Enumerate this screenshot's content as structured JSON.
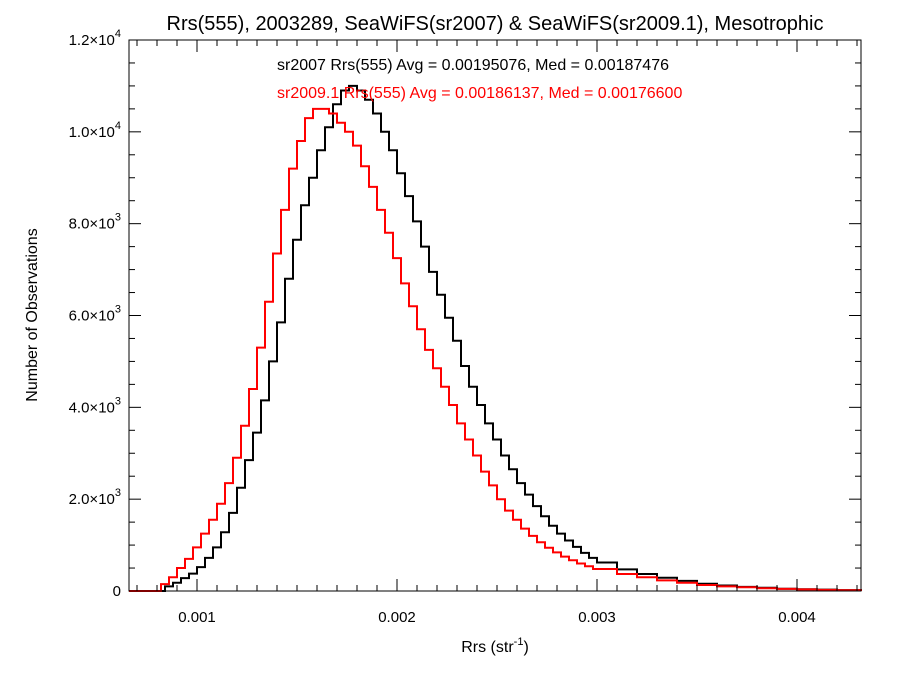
{
  "chart_data": {
    "type": "line",
    "title": "Rrs(555), 2003289, SeaWiFS(sr2007) & SeaWiFS(sr2009.1), Mesotrophic",
    "xlabel": "Rrs (str",
    "xlabel_sup": "-1",
    "xlabel_suffix": ")",
    "ylabel": "Number of Observations",
    "xlim": [
      0.00066,
      0.00432
    ],
    "ylim": [
      0,
      12000
    ],
    "x_ticks": [
      {
        "value": 0.001,
        "label": "0.001"
      },
      {
        "value": 0.002,
        "label": "0.002"
      },
      {
        "value": 0.003,
        "label": "0.003"
      },
      {
        "value": 0.004,
        "label": "0.004"
      }
    ],
    "y_ticks": [
      {
        "value": 0,
        "mant": "0",
        "exp": ""
      },
      {
        "value": 2000,
        "mant": "2.0×10",
        "exp": "3"
      },
      {
        "value": 4000,
        "mant": "4.0×10",
        "exp": "3"
      },
      {
        "value": 6000,
        "mant": "6.0×10",
        "exp": "3"
      },
      {
        "value": 8000,
        "mant": "8.0×10",
        "exp": "3"
      },
      {
        "value": 10000,
        "mant": "1.0×10",
        "exp": "4"
      },
      {
        "value": 12000,
        "mant": "1.2×10",
        "exp": "4"
      }
    ],
    "annotations": [
      {
        "text": "sr2007 Rrs(555) Avg = 0.00195076, Med = 0.00187476",
        "color": "#000000"
      },
      {
        "text": "sr2009.1 Rrs(555) Avg = 0.00186137, Med = 0.00176600",
        "color": "#ff0000"
      }
    ],
    "series": [
      {
        "color": "#000000",
        "step": true,
        "x": [
          0.00066,
          0.00082,
          0.00084,
          0.00088,
          0.00092,
          0.00096,
          0.001,
          0.00104,
          0.00108,
          0.00112,
          0.00116,
          0.0012,
          0.00124,
          0.00128,
          0.00132,
          0.00136,
          0.0014,
          0.00144,
          0.00148,
          0.00152,
          0.00156,
          0.0016,
          0.00164,
          0.00168,
          0.00172,
          0.00176,
          0.0018,
          0.00184,
          0.00188,
          0.00192,
          0.00196,
          0.002,
          0.00204,
          0.00208,
          0.00212,
          0.00216,
          0.0022,
          0.00224,
          0.00228,
          0.00232,
          0.00236,
          0.0024,
          0.00244,
          0.00248,
          0.00252,
          0.00256,
          0.0026,
          0.00264,
          0.00268,
          0.00272,
          0.00276,
          0.0028,
          0.00284,
          0.00288,
          0.00292,
          0.00296,
          0.003,
          0.0031,
          0.0032,
          0.0033,
          0.0034,
          0.0035,
          0.0036,
          0.0037,
          0.0038,
          0.0039,
          0.004,
          0.0041,
          0.0042,
          0.00432
        ],
        "y": [
          0,
          0,
          100,
          180,
          280,
          380,
          520,
          720,
          950,
          1280,
          1700,
          2250,
          2850,
          3450,
          4150,
          5000,
          5850,
          6800,
          7650,
          8400,
          9000,
          9600,
          10100,
          10600,
          10900,
          11000,
          10900,
          10700,
          10400,
          10000,
          9600,
          9100,
          8600,
          8050,
          7500,
          6950,
          6450,
          5950,
          5450,
          4900,
          4450,
          4050,
          3650,
          3300,
          2950,
          2650,
          2350,
          2100,
          1850,
          1630,
          1420,
          1250,
          1100,
          960,
          830,
          720,
          620,
          470,
          370,
          290,
          220,
          160,
          120,
          90,
          70,
          50,
          40,
          30,
          20,
          0
        ]
      },
      {
        "color": "#ff0000",
        "step": true,
        "x": [
          0.00066,
          0.00081,
          0.00082,
          0.00086,
          0.0009,
          0.00094,
          0.00098,
          0.00102,
          0.00106,
          0.0011,
          0.00114,
          0.00118,
          0.00122,
          0.00126,
          0.0013,
          0.00134,
          0.00138,
          0.00142,
          0.00146,
          0.0015,
          0.00154,
          0.00158,
          0.00162,
          0.00166,
          0.0017,
          0.00174,
          0.00178,
          0.00182,
          0.00186,
          0.0019,
          0.00194,
          0.00198,
          0.00202,
          0.00206,
          0.0021,
          0.00214,
          0.00218,
          0.00222,
          0.00226,
          0.0023,
          0.00234,
          0.00238,
          0.00242,
          0.00246,
          0.0025,
          0.00254,
          0.00258,
          0.00262,
          0.00266,
          0.0027,
          0.00274,
          0.00278,
          0.00282,
          0.00286,
          0.0029,
          0.00294,
          0.00298,
          0.0031,
          0.0032,
          0.0033,
          0.0034,
          0.0035,
          0.0036,
          0.0037,
          0.0038,
          0.0039,
          0.004,
          0.0041,
          0.0042,
          0.00432
        ],
        "y": [
          0,
          0,
          150,
          300,
          500,
          700,
          950,
          1250,
          1550,
          1900,
          2350,
          2900,
          3600,
          4400,
          5300,
          6300,
          7350,
          8300,
          9200,
          9800,
          10300,
          10500,
          10500,
          10400,
          10200,
          10000,
          9700,
          9250,
          8800,
          8300,
          7800,
          7250,
          6700,
          6200,
          5700,
          5250,
          4850,
          4450,
          4050,
          3650,
          3300,
          2950,
          2600,
          2300,
          2000,
          1750,
          1550,
          1360,
          1200,
          1060,
          940,
          840,
          750,
          670,
          600,
          540,
          480,
          370,
          300,
          230,
          180,
          130,
          100,
          80,
          60,
          45,
          35,
          25,
          15,
          0
        ]
      }
    ]
  }
}
